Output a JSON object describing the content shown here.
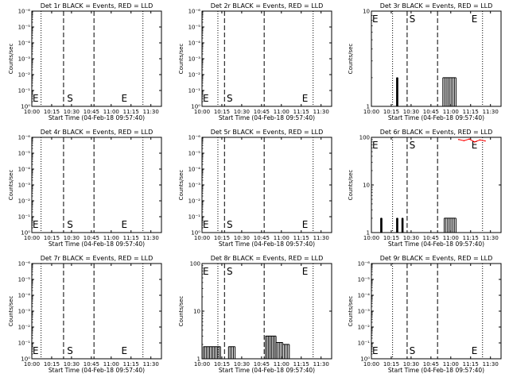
{
  "colors": {
    "background": "#ffffff",
    "events": "#000000",
    "lld": "#ff0000"
  },
  "chart_data": [
    {
      "type": "line",
      "title": "Det 1r BLACK = Events, RED = LLD",
      "xlabel": "Start Time (04-Feb-18 09:57:40)",
      "ylabel": "Counts/sec",
      "xlim": [
        "10:00",
        "11:38"
      ],
      "xticks": [
        "10:00",
        "10:15",
        "10:30",
        "10:45",
        "11:00",
        "11:15",
        "11:30"
      ],
      "yscale": "log",
      "ylim": [
        1,
        1e-06
      ],
      "yticks": [
        "10⁰",
        "10⁻¹",
        "10⁻²",
        "10⁻³",
        "10⁻⁴",
        "10⁻⁵",
        "10⁻⁶"
      ],
      "dotted_lines": [
        "10:07",
        "11:24"
      ],
      "dashed_lines": [
        "10:24",
        "10:47"
      ],
      "markers": [
        {
          "label": "E",
          "x": "10:00"
        },
        {
          "label": "S",
          "x": "10:26"
        },
        {
          "label": "E",
          "x": "11:07"
        }
      ],
      "series": []
    },
    {
      "type": "line",
      "title": "Det 2r BLACK = Events, RED = LLD",
      "xlabel": "Start Time (04-Feb-18 09:57:40)",
      "ylabel": "Counts/sec",
      "xlim": [
        "10:00",
        "11:38"
      ],
      "xticks": [
        "10:00",
        "10:15",
        "10:30",
        "10:45",
        "11:00",
        "11:15",
        "11:30"
      ],
      "yscale": "log",
      "ylim": [
        1,
        1e-06
      ],
      "yticks": [
        "10⁰",
        "10⁻¹",
        "10⁻²",
        "10⁻³",
        "10⁻⁴",
        "10⁻⁵",
        "10⁻⁶"
      ],
      "dotted_lines": [
        "10:12",
        "11:24"
      ],
      "dashed_lines": [
        "10:17",
        "10:47"
      ],
      "markers": [
        {
          "label": "E",
          "x": "10:00"
        },
        {
          "label": "S",
          "x": "10:18"
        },
        {
          "label": "E",
          "x": "11:15"
        }
      ],
      "series": []
    },
    {
      "type": "line",
      "title": "Det 3r BLACK = Events, RED = LLD",
      "xlabel": "Start Time (04-Feb-18 09:57:40)",
      "ylabel": "Counts/sec",
      "xlim": [
        "10:00",
        "11:38"
      ],
      "xticks": [
        "10:00",
        "10:15",
        "10:30",
        "10:45",
        "11:00",
        "11:15",
        "11:30"
      ],
      "yscale": "log",
      "ylim": [
        1,
        10
      ],
      "yticks": [
        "1",
        "10"
      ],
      "dotted_lines": [
        "10:16",
        "11:24"
      ],
      "dashed_lines": [
        "10:27",
        "10:50"
      ],
      "markers": [
        {
          "label": "E",
          "x": "10:00"
        },
        {
          "label": "S",
          "x": "10:28"
        },
        {
          "label": "E",
          "x": "11:15"
        }
      ],
      "series": [
        {
          "color": "#000000",
          "bursts": [
            {
              "start": "10:19",
              "end": "10:20",
              "level": 2
            },
            {
              "start": "10:54",
              "end": "11:04",
              "level": 2
            }
          ]
        }
      ]
    },
    {
      "type": "line",
      "title": "Det 4r BLACK = Events, RED = LLD",
      "xlabel": "Start Time (04-Feb-18 09:57:40)",
      "ylabel": "Counts/sec",
      "xlim": [
        "10:00",
        "11:38"
      ],
      "xticks": [
        "10:00",
        "10:15",
        "10:30",
        "10:45",
        "11:00",
        "11:15",
        "11:30"
      ],
      "yscale": "log",
      "ylim": [
        1,
        1e-06
      ],
      "yticks": [
        "10⁰",
        "10⁻¹",
        "10⁻²",
        "10⁻³",
        "10⁻⁴",
        "10⁻⁵",
        "10⁻⁶"
      ],
      "dotted_lines": [
        "10:07",
        "11:24"
      ],
      "dashed_lines": [
        "10:24",
        "10:47"
      ],
      "markers": [
        {
          "label": "E",
          "x": "10:00"
        },
        {
          "label": "S",
          "x": "10:26"
        },
        {
          "label": "E",
          "x": "11:07"
        }
      ],
      "series": []
    },
    {
      "type": "line",
      "title": "Det 5r BLACK = Events, RED = LLD",
      "xlabel": "Start Time (04-Feb-18 09:57:40)",
      "ylabel": "Counts/sec",
      "xlim": [
        "10:00",
        "11:38"
      ],
      "xticks": [
        "10:00",
        "10:15",
        "10:30",
        "10:45",
        "11:00",
        "11:15",
        "11:30"
      ],
      "yscale": "log",
      "ylim": [
        1,
        1e-06
      ],
      "yticks": [
        "10⁰",
        "10⁻¹",
        "10⁻²",
        "10⁻³",
        "10⁻⁴",
        "10⁻⁵",
        "10⁻⁶"
      ],
      "dotted_lines": [
        "10:12",
        "11:24"
      ],
      "dashed_lines": [
        "10:17",
        "10:47"
      ],
      "markers": [
        {
          "label": "E",
          "x": "10:00"
        },
        {
          "label": "S",
          "x": "10:18"
        },
        {
          "label": "E",
          "x": "11:15"
        }
      ],
      "series": []
    },
    {
      "type": "line",
      "title": "Det 6r BLACK = Events, RED = LLD",
      "xlabel": "Start Time (04-Feb-18 09:57:40)",
      "ylabel": "Counts/sec",
      "xlim": [
        "10:00",
        "11:38"
      ],
      "xticks": [
        "10:00",
        "10:15",
        "10:30",
        "10:45",
        "11:00",
        "11:15",
        "11:30"
      ],
      "yscale": "log",
      "ylim": [
        1,
        100
      ],
      "yticks": [
        "1",
        "10",
        "100"
      ],
      "dotted_lines": [
        "10:16",
        "11:24"
      ],
      "dashed_lines": [
        "10:27",
        "10:50"
      ],
      "markers": [
        {
          "label": "E",
          "x": "10:00"
        },
        {
          "label": "S",
          "x": "10:28"
        },
        {
          "label": "E",
          "x": "11:15"
        }
      ],
      "series": [
        {
          "color": "#000000",
          "bursts": [
            {
              "start": "10:07",
              "end": "10:08",
              "level": 2
            },
            {
              "start": "10:19",
              "end": "10:20",
              "level": 2
            },
            {
              "start": "10:23",
              "end": "10:24",
              "level": 2
            },
            {
              "start": "10:55",
              "end": "11:04",
              "level": 2
            }
          ]
        },
        {
          "color": "#ff0000",
          "x": [
            "11:06",
            "11:10",
            "11:14",
            "11:18",
            "11:22",
            "11:26"
          ],
          "values": [
            90,
            85,
            92,
            80,
            88,
            84
          ]
        }
      ]
    },
    {
      "type": "line",
      "title": "Det 7r BLACK = Events, RED = LLD",
      "xlabel": "Start Time (04-Feb-18 09:57:40)",
      "ylabel": "Counts/sec",
      "xlim": [
        "10:00",
        "11:38"
      ],
      "xticks": [
        "10:00",
        "10:15",
        "10:30",
        "10:45",
        "11:00",
        "11:15",
        "11:30"
      ],
      "yscale": "log",
      "ylim": [
        1,
        1e-06
      ],
      "yticks": [
        "10⁰",
        "10⁻¹",
        "10⁻²",
        "10⁻³",
        "10⁻⁴",
        "10⁻⁵",
        "10⁻⁶"
      ],
      "dotted_lines": [
        "10:07",
        "11:24"
      ],
      "dashed_lines": [
        "10:24",
        "10:47"
      ],
      "markers": [
        {
          "label": "E",
          "x": "10:00"
        },
        {
          "label": "S",
          "x": "10:26"
        },
        {
          "label": "E",
          "x": "11:07"
        }
      ],
      "series": []
    },
    {
      "type": "line",
      "title": "Det 8r BLACK = Events, RED = LLD",
      "xlabel": "Start Time (04-Feb-18 09:57:40)",
      "ylabel": "Counts/sec",
      "xlim": [
        "10:00",
        "11:38"
      ],
      "xticks": [
        "10:00",
        "10:15",
        "10:30",
        "10:45",
        "11:00",
        "11:15",
        "11:30"
      ],
      "yscale": "log",
      "ylim": [
        1,
        100
      ],
      "yticks": [
        "1",
        "10",
        "100"
      ],
      "dotted_lines": [
        "10:12",
        "11:24"
      ],
      "dashed_lines": [
        "10:17",
        "10:47"
      ],
      "markers": [
        {
          "label": "E",
          "x": "10:00"
        },
        {
          "label": "S",
          "x": "10:18"
        },
        {
          "label": "E",
          "x": "11:15"
        }
      ],
      "series": [
        {
          "color": "#000000",
          "bursts": [
            {
              "start": "10:01",
              "end": "10:14",
              "level": 1.8
            },
            {
              "start": "10:20",
              "end": "10:25",
              "level": 1.8
            },
            {
              "start": "10:48",
              "end": "10:56",
              "level": 3
            },
            {
              "start": "10:56",
              "end": "11:01",
              "level": 2.2
            },
            {
              "start": "11:01",
              "end": "11:06",
              "level": 2
            }
          ]
        }
      ]
    },
    {
      "type": "line",
      "title": "Det 9r BLACK = Events, RED = LLD",
      "xlabel": "Start Time (04-Feb-18 09:57:40)",
      "ylabel": "Counts/sec",
      "xlim": [
        "10:00",
        "11:38"
      ],
      "xticks": [
        "10:00",
        "10:15",
        "10:30",
        "10:45",
        "11:00",
        "11:15",
        "11:30"
      ],
      "yscale": "log",
      "ylim": [
        1,
        1e-06
      ],
      "yticks": [
        "10⁰",
        "10⁻¹",
        "10⁻²",
        "10⁻³",
        "10⁻⁴",
        "10⁻⁵",
        "10⁻⁶"
      ],
      "dotted_lines": [
        "10:16",
        "11:24"
      ],
      "dashed_lines": [
        "10:27",
        "10:50"
      ],
      "markers": [
        {
          "label": "E",
          "x": "10:00"
        },
        {
          "label": "S",
          "x": "10:28"
        },
        {
          "label": "E",
          "x": "11:15"
        }
      ],
      "series": []
    }
  ]
}
